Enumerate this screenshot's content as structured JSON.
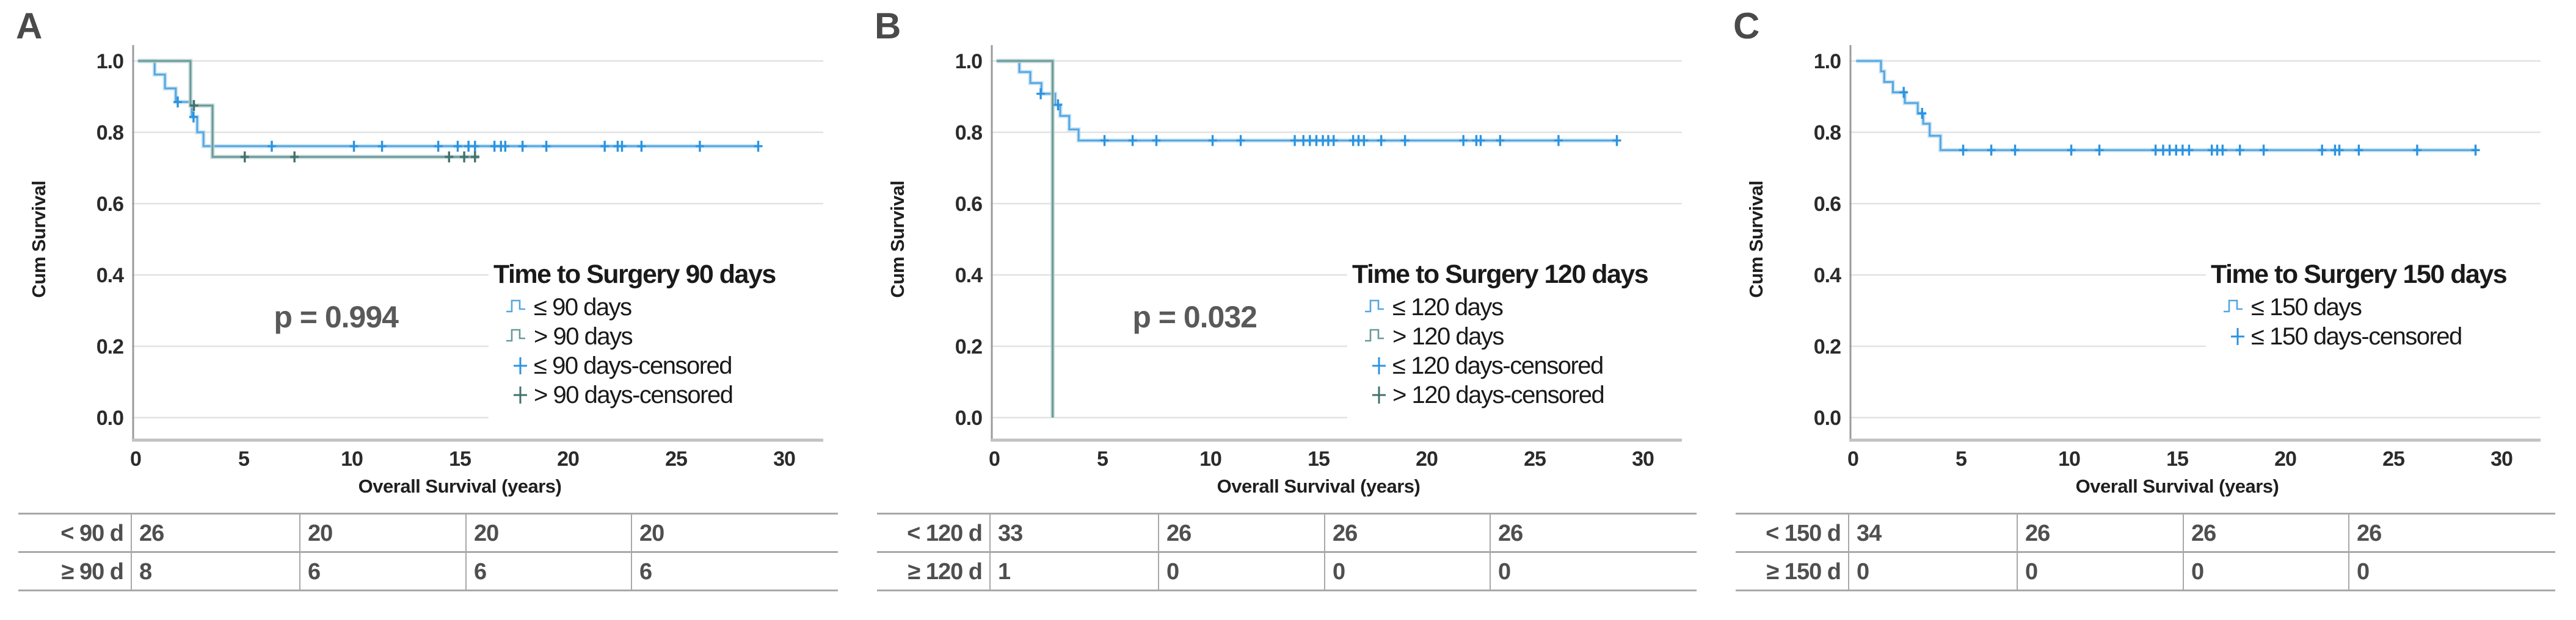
{
  "colors": {
    "blue": {
      "line": "#54a7e0",
      "halo": "#c0def4",
      "censor": "#2b93e0"
    },
    "teal": {
      "line": "#699a9a",
      "halo": "#bdd2d2",
      "censor": "#41716e"
    },
    "grid": "#e2e2e2",
    "y_axis_line": "#9b9b9b",
    "x_axis_line": "#c2c2c2",
    "tick_text": "#2b2b2b",
    "axis_title_text": "#1f1f1f",
    "legend_text": "#1a1a1a",
    "annotation_text": "#595959",
    "panel_label_text": "#4a4a4a",
    "table_border": "#a8a8a8",
    "table_text": "#4f4f4f"
  },
  "chart_data": [
    {
      "id": "A",
      "panel_label": "A",
      "type": "line",
      "subtype": "kaplan-meier-step",
      "title": "Time to Surgery 90 days",
      "xlabel": "Overall Survival (years)",
      "ylabel": "Cum Survival",
      "xticks": [
        "0",
        "5",
        "10",
        "15",
        "20",
        "25",
        "30"
      ],
      "yticks": [
        "0.0",
        "0.2",
        "0.4",
        "0.6",
        "0.8",
        "1.0"
      ],
      "xlim": [
        0,
        30
      ],
      "ylim": [
        0.0,
        1.0
      ],
      "grid": "horizontal",
      "legend_position": "right-center",
      "annotation": {
        "text": "p = 0.994",
        "x": 9.27,
        "y": 0.28
      },
      "series": [
        {
          "name": "≤ 90 days",
          "color": "blue",
          "points": [
            [
              0.1,
              1.0
            ],
            [
              0.88,
              1.0
            ],
            [
              0.88,
              0.962
            ],
            [
              1.36,
              0.962
            ],
            [
              1.36,
              0.923
            ],
            [
              1.86,
              0.923
            ],
            [
              1.86,
              0.885
            ],
            [
              2.6,
              0.885
            ],
            [
              2.6,
              0.843
            ],
            [
              2.85,
              0.843
            ],
            [
              2.85,
              0.8
            ],
            [
              3.14,
              0.8
            ],
            [
              3.14,
              0.761
            ],
            [
              28.8,
              0.761
            ]
          ],
          "censored": [
            [
              1.95,
              0.885
            ],
            [
              2.68,
              0.843
            ],
            [
              6.3,
              0.761
            ],
            [
              10.1,
              0.761
            ],
            [
              11.4,
              0.761
            ],
            [
              14.0,
              0.761
            ],
            [
              14.9,
              0.761
            ],
            [
              15.4,
              0.761
            ],
            [
              15.7,
              0.761
            ],
            [
              16.6,
              0.761
            ],
            [
              16.9,
              0.761
            ],
            [
              17.1,
              0.761
            ],
            [
              17.9,
              0.761
            ],
            [
              19.0,
              0.761
            ],
            [
              21.7,
              0.761
            ],
            [
              22.3,
              0.761
            ],
            [
              22.5,
              0.761
            ],
            [
              23.4,
              0.761
            ],
            [
              26.1,
              0.761
            ],
            [
              28.8,
              0.761
            ]
          ]
        },
        {
          "name": "> 90 days",
          "color": "teal",
          "points": [
            [
              0.14,
              1.0
            ],
            [
              2.54,
              1.0
            ],
            [
              2.54,
              0.875
            ],
            [
              3.56,
              0.875
            ],
            [
              3.56,
              0.731
            ],
            [
              15.9,
              0.731
            ]
          ],
          "censored": [
            [
              2.7,
              0.875
            ],
            [
              5.05,
              0.731
            ],
            [
              7.35,
              0.731
            ],
            [
              14.5,
              0.731
            ],
            [
              15.2,
              0.731
            ],
            [
              15.7,
              0.731
            ]
          ]
        }
      ],
      "risk_table": {
        "rows": [
          {
            "label": "< 90 d",
            "values": [
              "26",
              "20",
              "20",
              "20"
            ]
          },
          {
            "label": "≥ 90 d",
            "values": [
              "8",
              "6",
              "6",
              "6"
            ]
          }
        ]
      }
    },
    {
      "id": "B",
      "panel_label": "B",
      "type": "line",
      "subtype": "kaplan-meier-step",
      "title": "Time to Surgery 120 days",
      "xlabel": "Overall Survival (years)",
      "ylabel": "Cum Survival",
      "xticks": [
        "0",
        "5",
        "10",
        "15",
        "20",
        "25",
        "30"
      ],
      "yticks": [
        "0.0",
        "0.2",
        "0.4",
        "0.6",
        "0.8",
        "1.0"
      ],
      "xlim": [
        0,
        30
      ],
      "ylim": [
        0.0,
        1.0
      ],
      "grid": "horizontal",
      "legend_position": "right-center",
      "annotation": {
        "text": "p = 0.032",
        "x": 9.27,
        "y": 0.28
      },
      "series": [
        {
          "name": "≤ 120 days",
          "color": "blue",
          "points": [
            [
              0.1,
              1.0
            ],
            [
              1.16,
              1.0
            ],
            [
              1.16,
              0.969
            ],
            [
              1.67,
              0.969
            ],
            [
              1.67,
              0.938
            ],
            [
              2.18,
              0.938
            ],
            [
              2.18,
              0.908
            ],
            [
              2.82,
              0.908
            ],
            [
              2.82,
              0.877
            ],
            [
              3.05,
              0.877
            ],
            [
              3.05,
              0.846
            ],
            [
              3.47,
              0.846
            ],
            [
              3.47,
              0.808
            ],
            [
              3.9,
              0.808
            ],
            [
              3.9,
              0.777
            ],
            [
              28.8,
              0.777
            ]
          ],
          "censored": [
            [
              2.15,
              0.908
            ],
            [
              2.95,
              0.877
            ],
            [
              5.1,
              0.777
            ],
            [
              6.4,
              0.777
            ],
            [
              7.5,
              0.777
            ],
            [
              10.1,
              0.777
            ],
            [
              11.4,
              0.777
            ],
            [
              13.9,
              0.777
            ],
            [
              14.3,
              0.777
            ],
            [
              14.6,
              0.777
            ],
            [
              14.9,
              0.777
            ],
            [
              15.2,
              0.777
            ],
            [
              15.45,
              0.777
            ],
            [
              15.7,
              0.777
            ],
            [
              16.6,
              0.777
            ],
            [
              16.85,
              0.777
            ],
            [
              17.1,
              0.777
            ],
            [
              17.9,
              0.777
            ],
            [
              19.0,
              0.777
            ],
            [
              21.7,
              0.777
            ],
            [
              22.3,
              0.777
            ],
            [
              22.5,
              0.777
            ],
            [
              23.4,
              0.777
            ],
            [
              26.1,
              0.777
            ],
            [
              28.8,
              0.777
            ]
          ]
        },
        {
          "name": "> 120 days",
          "color": "teal",
          "points": [
            [
              0.14,
              1.0
            ],
            [
              2.7,
              1.0
            ],
            [
              2.7,
              0.0
            ]
          ],
          "censored": []
        }
      ],
      "risk_table": {
        "rows": [
          {
            "label": "< 120 d",
            "values": [
              "33",
              "26",
              "26",
              "26"
            ]
          },
          {
            "label": "≥ 120 d",
            "values": [
              "1",
              "0",
              "0",
              "0"
            ]
          }
        ]
      }
    },
    {
      "id": "C",
      "panel_label": "C",
      "type": "line",
      "subtype": "kaplan-meier-step",
      "title": "Time to Surgery 150 days",
      "xlabel": "Overall Survival (years)",
      "ylabel": "Cum Survival",
      "xticks": [
        "0",
        "5",
        "10",
        "15",
        "20",
        "25",
        "30"
      ],
      "yticks": [
        "0.0",
        "0.2",
        "0.4",
        "0.6",
        "0.8",
        "1.0"
      ],
      "xlim": [
        0,
        30
      ],
      "ylim": [
        0.0,
        1.0
      ],
      "grid": "horizontal",
      "legend_position": "right-center",
      "annotation": null,
      "series": [
        {
          "name": "≤ 150 days",
          "color": "blue",
          "points": [
            [
              0.15,
              1.0
            ],
            [
              1.3,
              1.0
            ],
            [
              1.3,
              0.971
            ],
            [
              1.45,
              0.971
            ],
            [
              1.45,
              0.941
            ],
            [
              1.85,
              0.941
            ],
            [
              1.85,
              0.912
            ],
            [
              2.4,
              0.912
            ],
            [
              2.4,
              0.882
            ],
            [
              3.0,
              0.882
            ],
            [
              3.0,
              0.853
            ],
            [
              3.25,
              0.853
            ],
            [
              3.25,
              0.824
            ],
            [
              3.55,
              0.824
            ],
            [
              3.55,
              0.79
            ],
            [
              4.05,
              0.79
            ],
            [
              4.05,
              0.75
            ],
            [
              28.8,
              0.75
            ]
          ],
          "censored": [
            [
              2.35,
              0.912
            ],
            [
              3.2,
              0.853
            ],
            [
              5.1,
              0.75
            ],
            [
              6.4,
              0.75
            ],
            [
              7.5,
              0.75
            ],
            [
              10.1,
              0.75
            ],
            [
              11.4,
              0.75
            ],
            [
              14.0,
              0.75
            ],
            [
              14.35,
              0.75
            ],
            [
              14.65,
              0.75
            ],
            [
              14.95,
              0.75
            ],
            [
              15.25,
              0.75
            ],
            [
              15.55,
              0.75
            ],
            [
              16.6,
              0.75
            ],
            [
              16.85,
              0.75
            ],
            [
              17.1,
              0.75
            ],
            [
              17.9,
              0.75
            ],
            [
              19.0,
              0.75
            ],
            [
              21.7,
              0.75
            ],
            [
              22.3,
              0.75
            ],
            [
              22.5,
              0.75
            ],
            [
              23.4,
              0.75
            ],
            [
              26.1,
              0.75
            ],
            [
              28.8,
              0.75
            ]
          ]
        }
      ],
      "risk_table": {
        "rows": [
          {
            "label": "< 150 d",
            "values": [
              "34",
              "26",
              "26",
              "26"
            ]
          },
          {
            "label": "≥ 150 d",
            "values": [
              "0",
              "0",
              "0",
              "0"
            ]
          }
        ]
      }
    }
  ]
}
